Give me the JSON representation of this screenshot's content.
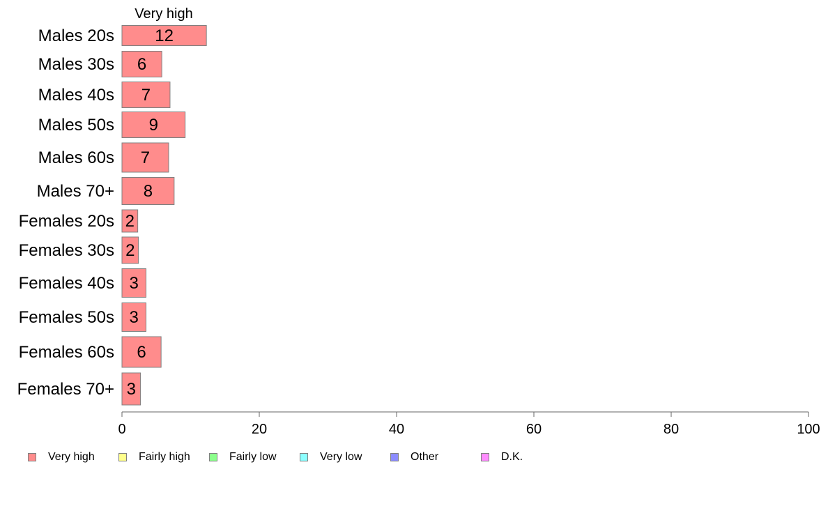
{
  "chart_data": {
    "type": "bar",
    "orientation": "horizontal",
    "stacked": true,
    "series_header": "Very high",
    "categories": [
      "Males 20s",
      "Males 30s",
      "Males 40s",
      "Males 50s",
      "Males 60s",
      "Males 70+",
      "Females 20s",
      "Females 30s",
      "Females 40s",
      "Females 50s",
      "Females 60s",
      "Females 70+"
    ],
    "series": [
      {
        "name": "Very high",
        "color": "#ff8c8c",
        "values": [
          12.3,
          5.8,
          7.0,
          9.2,
          6.8,
          7.6,
          2.3,
          2.4,
          3.5,
          3.5,
          5.7,
          2.7
        ],
        "labels": [
          "12",
          "6",
          "7",
          "9",
          "7",
          "8",
          "2",
          "2",
          "3",
          "3",
          "6",
          "3"
        ]
      }
    ],
    "xlim": [
      0,
      100
    ],
    "xticks": [
      "0",
      "20",
      "40",
      "60",
      "80",
      "100"
    ],
    "grid": false,
    "legend": {
      "position": "bottom",
      "items": [
        {
          "label": "Very high",
          "color": "#ff8c8c"
        },
        {
          "label": "Fairly high",
          "color": "#ffff8c"
        },
        {
          "label": "Fairly low",
          "color": "#8cff8c"
        },
        {
          "label": "Very low",
          "color": "#8cffff"
        },
        {
          "label": "Other",
          "color": "#8c8cff"
        },
        {
          "label": "D.K.",
          "color": "#ff8cff"
        }
      ]
    }
  }
}
